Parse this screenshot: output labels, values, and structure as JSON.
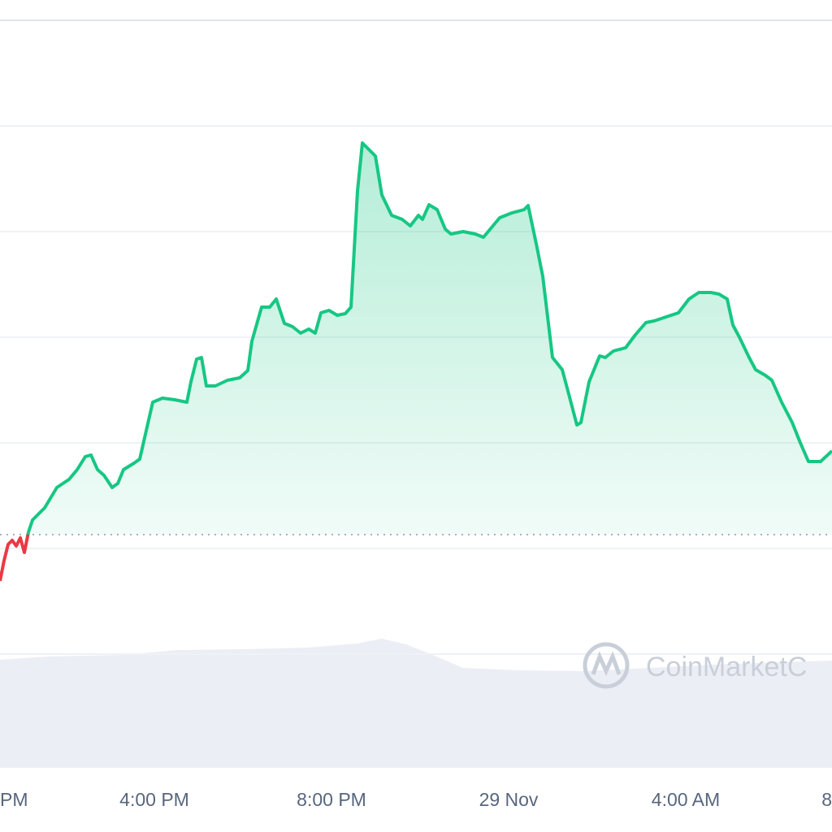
{
  "chart_data": {
    "type": "line",
    "x": [
      28,
      33,
      38,
      43,
      48,
      53,
      58,
      63,
      68,
      83,
      98,
      113,
      123,
      133,
      140,
      148,
      156,
      166,
      173,
      180,
      193,
      200,
      208,
      216,
      228,
      243,
      258,
      263,
      270,
      276,
      282,
      293,
      308,
      323,
      333,
      338,
      350,
      360,
      368,
      378,
      388,
      398,
      408,
      416,
      423,
      433,
      443,
      453,
      460,
      468,
      474,
      490,
      498,
      510,
      523,
      533,
      543,
      548,
      556,
      566,
      576,
      583,
      598,
      613,
      623,
      633,
      643,
      658,
      673,
      678,
      688,
      696,
      708,
      720,
      728,
      738,
      743,
      753,
      766,
      773,
      783,
      798,
      810,
      823,
      833,
      848,
      863,
      876,
      888,
      903,
      913,
      923,
      930,
      938,
      950,
      958,
      970,
      978,
      990,
      1003,
      1013,
      1023,
      1038,
      1052
    ],
    "values": [
      90,
      115,
      135,
      140,
      133,
      143,
      125,
      150,
      165,
      180,
      205,
      215,
      227,
      243,
      245,
      227,
      220,
      205,
      210,
      227,
      235,
      240,
      275,
      310,
      315,
      313,
      310,
      335,
      363,
      365,
      330,
      330,
      337,
      340,
      349,
      385,
      427,
      427,
      437,
      407,
      403,
      395,
      400,
      395,
      420,
      423,
      417,
      419,
      427,
      570,
      629,
      613,
      565,
      540,
      535,
      527,
      540,
      535,
      553,
      547,
      523,
      517,
      520,
      517,
      513,
      525,
      537,
      543,
      547,
      552,
      505,
      465,
      365,
      350,
      320,
      282,
      285,
      335,
      367,
      365,
      373,
      377,
      393,
      408,
      410,
      415,
      420,
      437,
      445,
      445,
      443,
      437,
      405,
      390,
      365,
      350,
      343,
      337,
      310,
      285,
      260,
      237,
      237,
      250
    ],
    "baseline": 147,
    "up_color": "#16c784",
    "down_color": "#ea3943",
    "xlim": [
      28,
      1052
    ],
    "xticks": [
      {
        "value": 0,
        "label": "PM"
      },
      {
        "value": 218,
        "label": "4:00 PM"
      },
      {
        "value": 436,
        "label": "8:00 PM"
      },
      {
        "value": 654,
        "label": "29 Nov"
      },
      {
        "value": 872,
        "label": "4:00 AM"
      },
      {
        "value": 1090,
        "label": "8"
      }
    ],
    "ylim": [
      0,
      780
    ],
    "yticks": [
      0,
      130,
      260,
      390,
      520,
      650,
      780
    ],
    "grid": true,
    "watermark": "CoinMarketC"
  }
}
